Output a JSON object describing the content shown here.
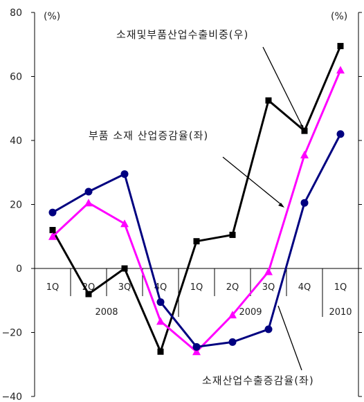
{
  "chart_data": {
    "type": "line",
    "categories": [
      "1Q",
      "2Q",
      "3Q",
      "4Q",
      "1Q",
      "2Q",
      "3Q",
      "4Q",
      "1Q"
    ],
    "years": [
      {
        "label": "2008",
        "from": 0,
        "to": 3
      },
      {
        "label": "2009",
        "from": 4,
        "to": 7
      },
      {
        "label": "2010",
        "from": 8,
        "to": 8
      }
    ],
    "left_unit": "(%)",
    "right_unit": "(%)",
    "ylim": [
      -40,
      80
    ],
    "yticks": [
      80,
      60,
      40,
      20,
      0,
      -20,
      -40
    ],
    "yticklabels": [
      "80",
      "60",
      "40",
      "20",
      "0",
      "−20",
      "−40"
    ],
    "series": [
      {
        "name": "소재및부품산업수출비중(우)",
        "color": "#000000",
        "marker": "square",
        "values": [
          12,
          -8,
          0,
          -26,
          8.5,
          10.5,
          52.5,
          43,
          69.5
        ]
      },
      {
        "name": "부품 소재 산업증감율(좌)",
        "color": "#ff00ff",
        "marker": "triangle",
        "values": [
          10,
          20.5,
          14,
          -16.5,
          -26,
          -14.5,
          -1,
          35.5,
          62
        ]
      },
      {
        "name": "소재산업수출증감율(좌)",
        "color": "#000080",
        "marker": "circle",
        "values": [
          17.5,
          24,
          29.5,
          -10.5,
          -24.5,
          -23,
          -19,
          20.5,
          42
        ]
      }
    ],
    "annotations": [
      "소재및부품산업수출비중(우)",
      "부품 소재 산업증감율(좌)",
      "소재산업수출증감율(좌)"
    ]
  }
}
